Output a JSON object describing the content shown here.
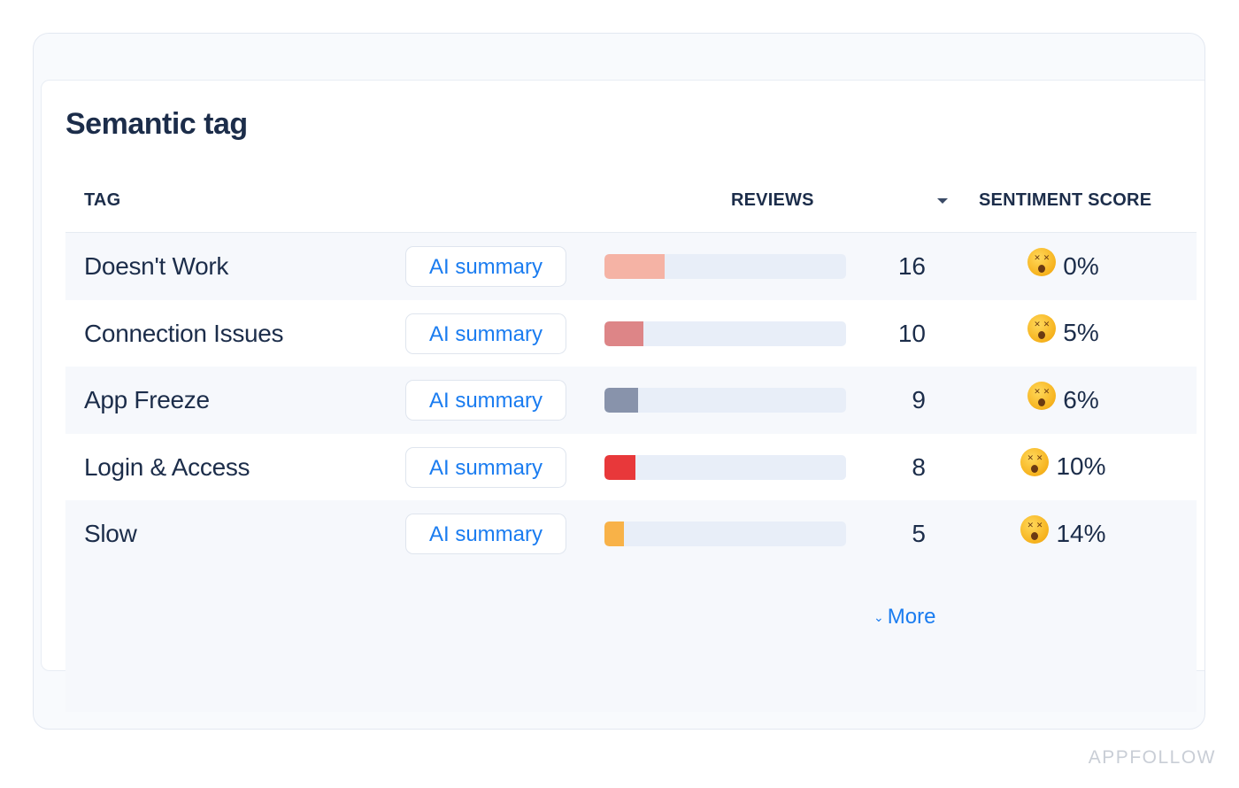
{
  "panel": {
    "title": "Semantic tag"
  },
  "table": {
    "headers": {
      "tag": "TAG",
      "reviews": "REVIEWS",
      "sentiment": "SENTIMENT SCORE"
    },
    "sort_icon": "caret-down-icon",
    "rows": [
      {
        "tag": "Doesn't Work",
        "button": "AI summary",
        "reviews": "16",
        "bar_fraction": 0.25,
        "bar_color": "#f5b3a5",
        "icon": "dizzy-face-icon",
        "sentiment": "0%"
      },
      {
        "tag": "Connection Issues",
        "button": "AI summary",
        "reviews": "10",
        "bar_fraction": 0.16,
        "bar_color": "#dd8587",
        "icon": "dizzy-face-icon",
        "sentiment": "5%"
      },
      {
        "tag": "App Freeze",
        "button": "AI summary",
        "reviews": "9",
        "bar_fraction": 0.14,
        "bar_color": "#8893ab",
        "icon": "dizzy-face-icon",
        "sentiment": "6%"
      },
      {
        "tag": "Login & Access",
        "button": "AI summary",
        "reviews": "8",
        "bar_fraction": 0.13,
        "bar_color": "#e8383a",
        "icon": "dizzy-face-icon",
        "sentiment": "10%"
      },
      {
        "tag": "Slow",
        "button": "AI summary",
        "reviews": "5",
        "bar_fraction": 0.08,
        "bar_color": "#f8b248",
        "icon": "dizzy-face-icon",
        "sentiment": "14%"
      }
    ],
    "more_label": "More",
    "more_icon": "chevron-down-icon"
  },
  "watermark": "APPFOLLOW"
}
